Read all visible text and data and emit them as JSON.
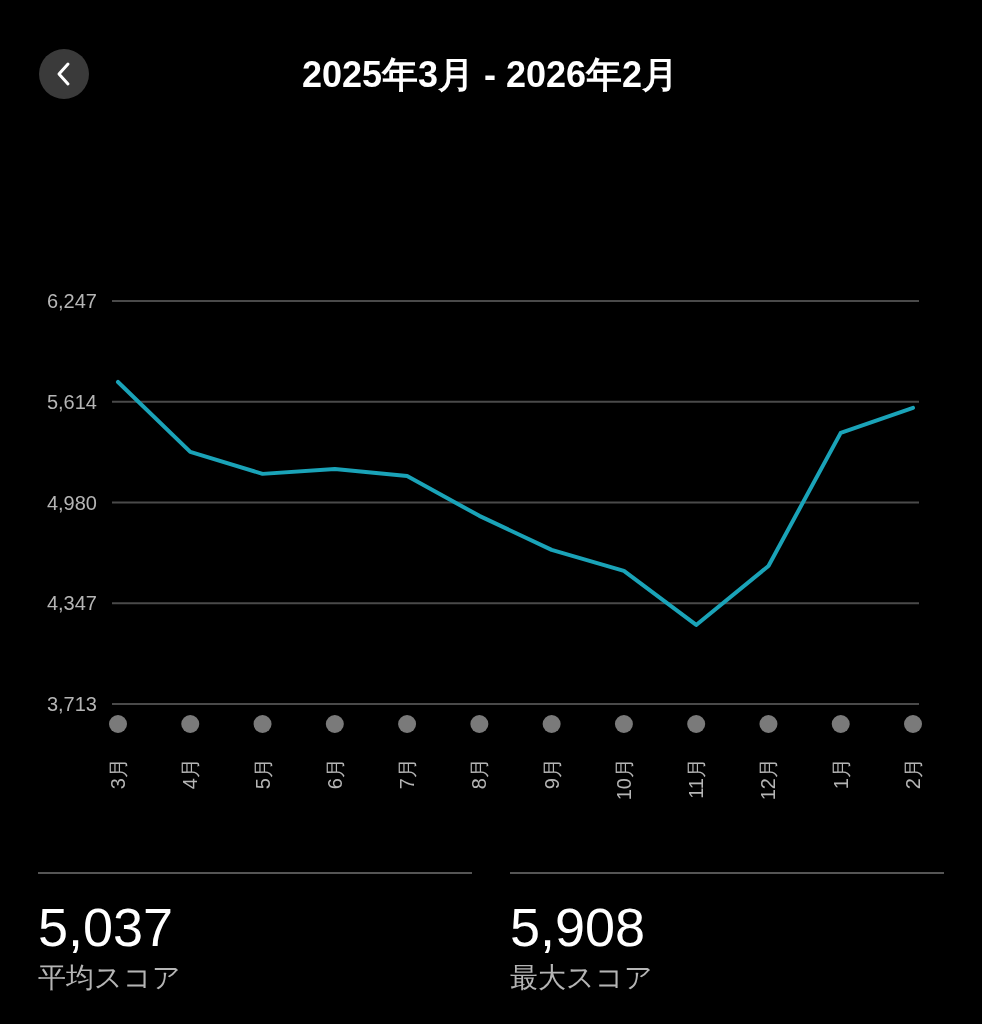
{
  "chart_data": {
    "type": "line",
    "title": "2025年3月 - 2026年2月",
    "categories": [
      "3月",
      "4月",
      "5月",
      "6月",
      "7月",
      "8月",
      "9月",
      "10月",
      "11月",
      "12月",
      "1月",
      "2月"
    ],
    "values": [
      5738,
      5298,
      5160,
      5191,
      5147,
      4896,
      4682,
      4550,
      4210,
      4581,
      5418,
      5575
    ],
    "color": "#1aa3b8",
    "ylim": [
      3713,
      6247
    ],
    "yticks": [
      {
        "value": 3713,
        "label": "3,713"
      },
      {
        "value": 4347,
        "label": "4,347"
      },
      {
        "value": 4980,
        "label": "4,980"
      },
      {
        "value": 5614,
        "label": "5,614"
      },
      {
        "value": 6247,
        "label": "6,247"
      }
    ],
    "grid": "y",
    "annotations": [
      "5,037",
      "平均スコア",
      "5,908",
      "最大スコア"
    ]
  }
}
